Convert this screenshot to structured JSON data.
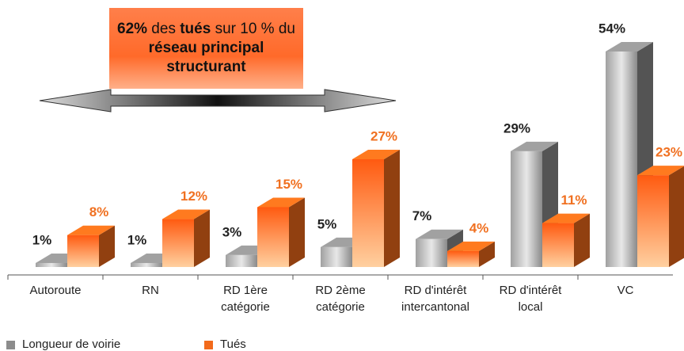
{
  "chart_data": {
    "type": "bar",
    "annotation": [
      {
        "text": "62%",
        "bold": true
      },
      {
        "text": " des ",
        "bold": false
      },
      {
        "text": "tués",
        "bold": true
      },
      {
        "text": " sur 10 % du ",
        "bold": false
      },
      {
        "text": "réseau principal structurant",
        "bold": true
      }
    ],
    "categories": [
      "Autoroute",
      "RN",
      "RD 1ère catégorie",
      "RD 2ème catégorie",
      "RD d'intérêt intercantonal",
      "RD d'intérêt local",
      "VC"
    ],
    "series": [
      {
        "name": "Longueur de voirie",
        "color": "#8c8c8c",
        "values": [
          1,
          1,
          3,
          5,
          7,
          29,
          54
        ],
        "value_labels": [
          "1%",
          "1%",
          "3%",
          "5%",
          "7%",
          "29%",
          "54%"
        ]
      },
      {
        "name": "Tués",
        "color": "#f26a1b",
        "values": [
          8,
          12,
          15,
          27,
          4,
          11,
          23
        ],
        "value_labels": [
          "8%",
          "12%",
          "15%",
          "27%",
          "4%",
          "11%",
          "23%"
        ]
      }
    ]
  }
}
